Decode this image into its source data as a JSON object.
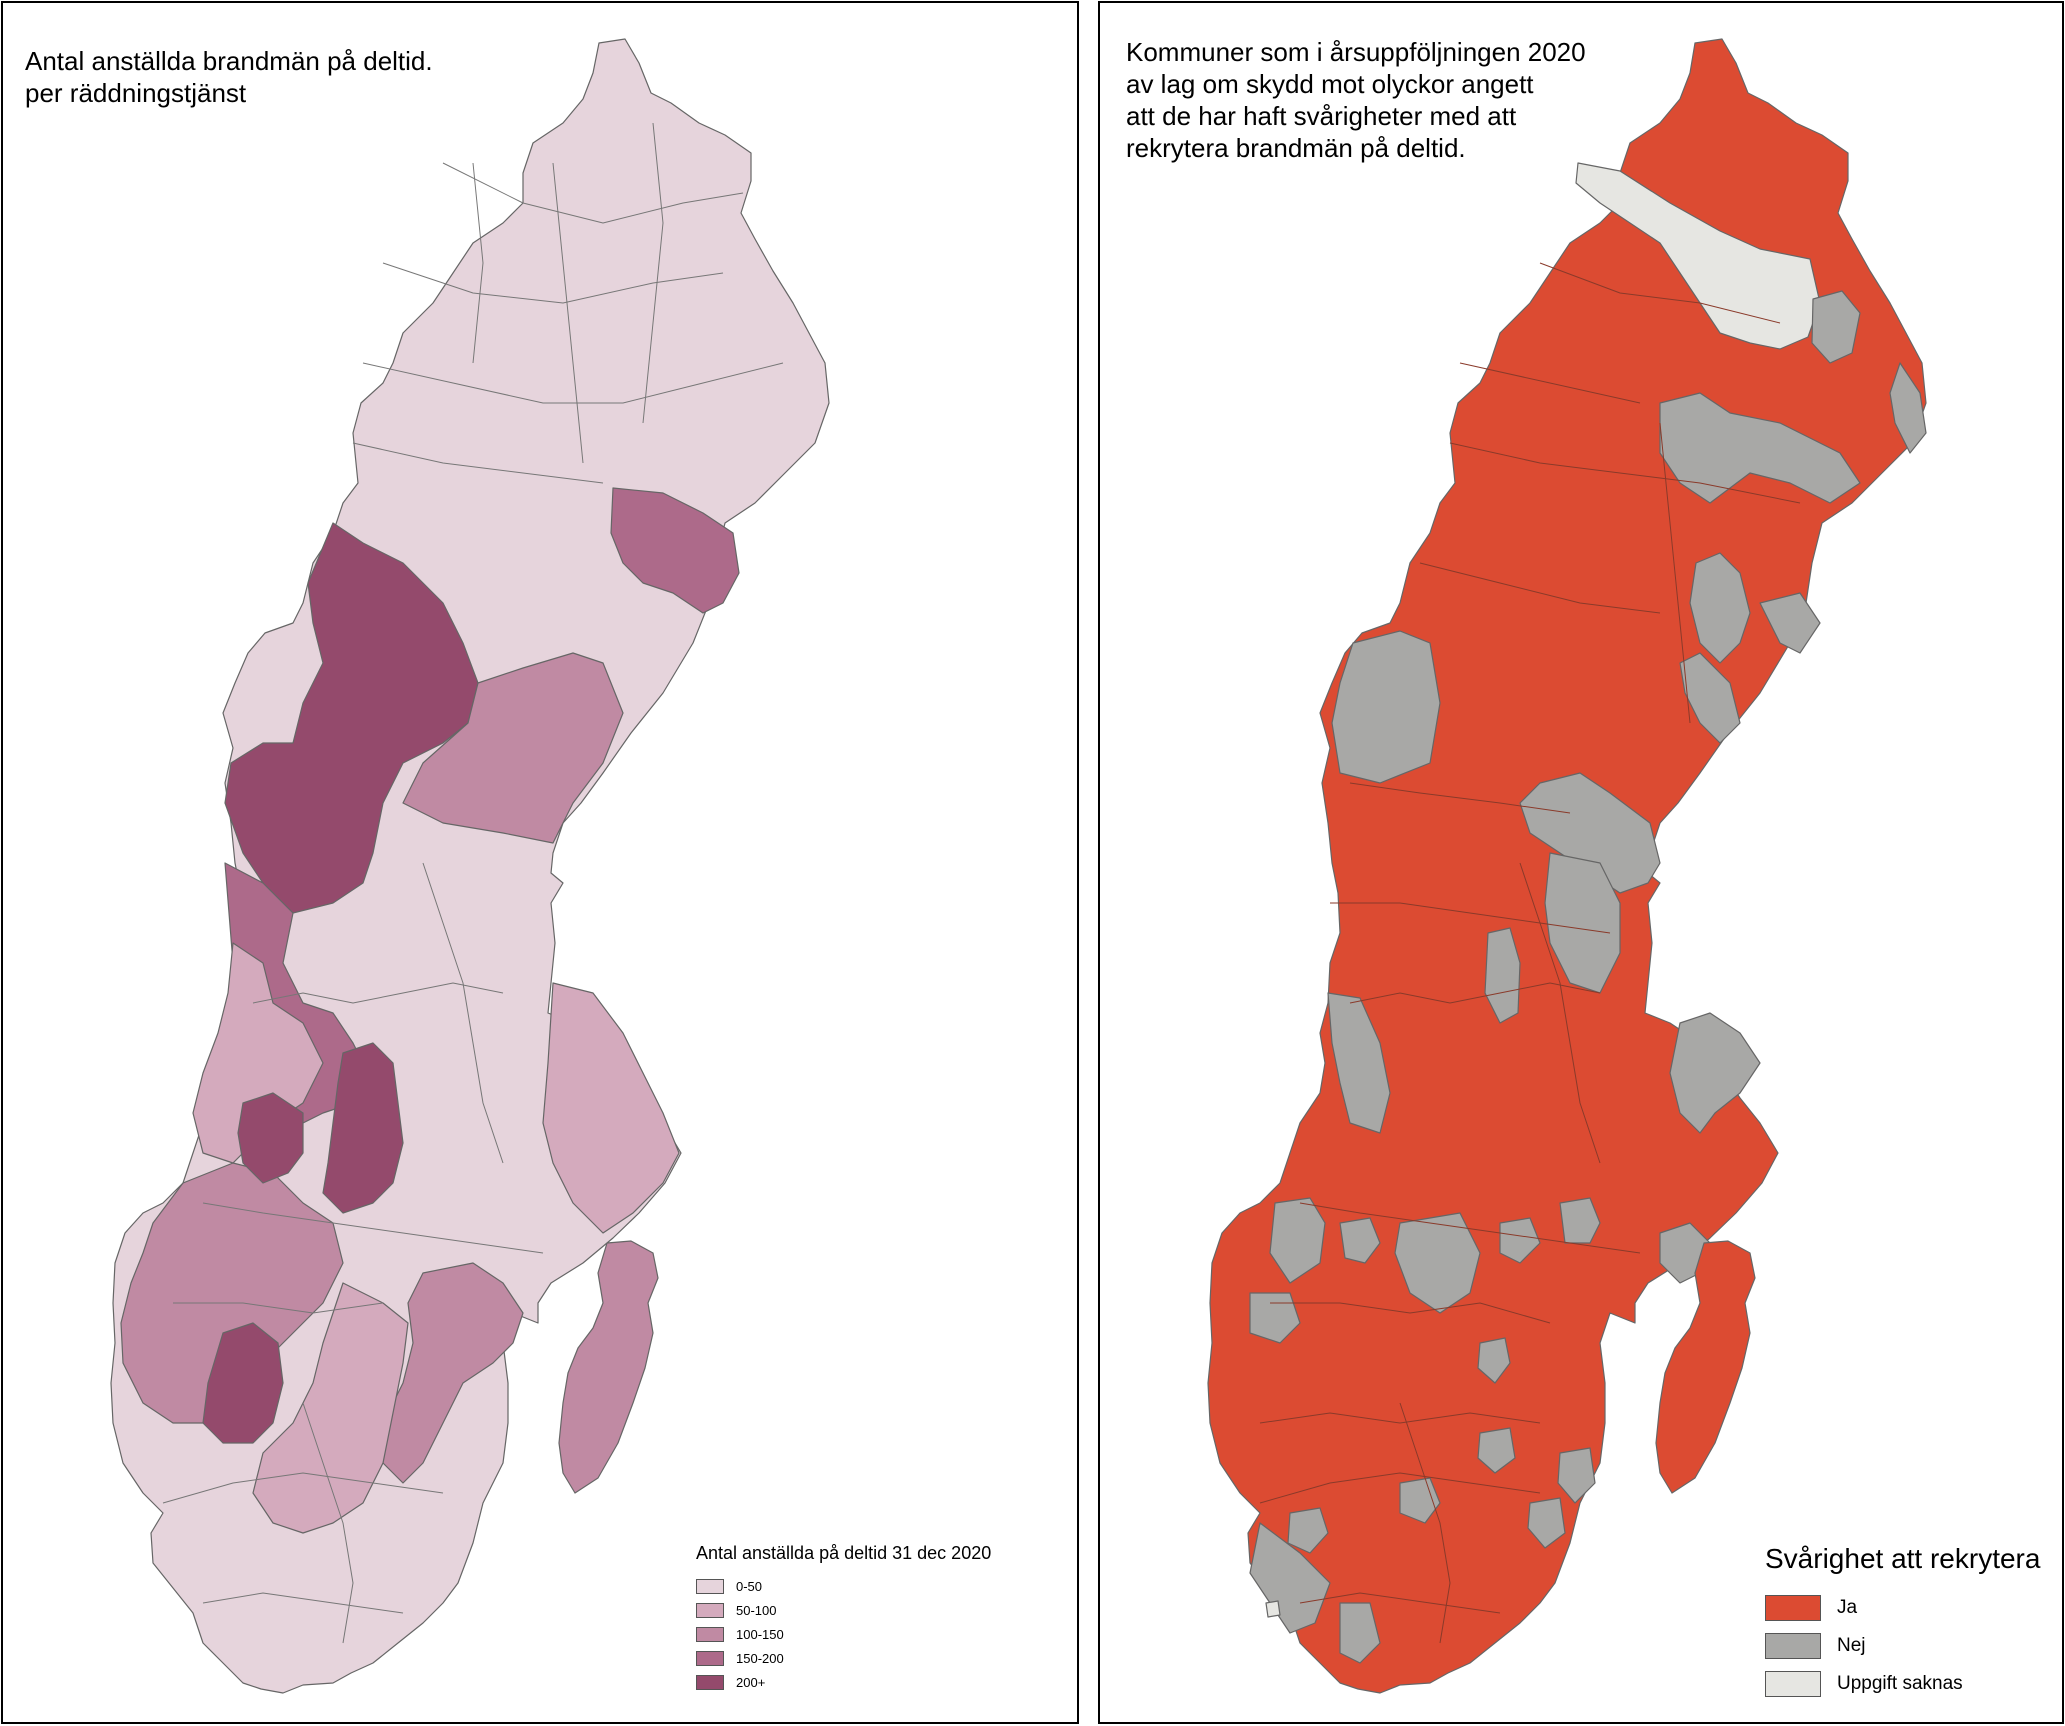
{
  "left_map": {
    "title": "Antal anställda brandmän på deltid.\nper räddningstjänst",
    "legend": {
      "title": "Antal anställda på deltid 31 dec 2020",
      "items": [
        {
          "label": "0-50",
          "color": "#e6d4dc"
        },
        {
          "label": "50-100",
          "color": "#d4aabd"
        },
        {
          "label": "100-150",
          "color": "#c08aa3"
        },
        {
          "label": "150-200",
          "color": "#ad6a8a"
        },
        {
          "label": "200+",
          "color": "#944a6c"
        }
      ]
    }
  },
  "right_map": {
    "title": "Kommuner som i årsuppföljningen 2020\nav lag om skydd mot olyckor angett\natt de har haft svårigheter med att\nrekrytera brandmän på deltid.",
    "legend": {
      "title": "Svårighet att rekrytera",
      "items": [
        {
          "label": "Ja",
          "color": "#dc4b32"
        },
        {
          "label": "Nej",
          "color": "#a8a8a6"
        },
        {
          "label": "Uppgift saknas",
          "color": "#e6e6e2"
        }
      ]
    }
  },
  "colors": {
    "border": "#555555",
    "frame": "#000000"
  }
}
